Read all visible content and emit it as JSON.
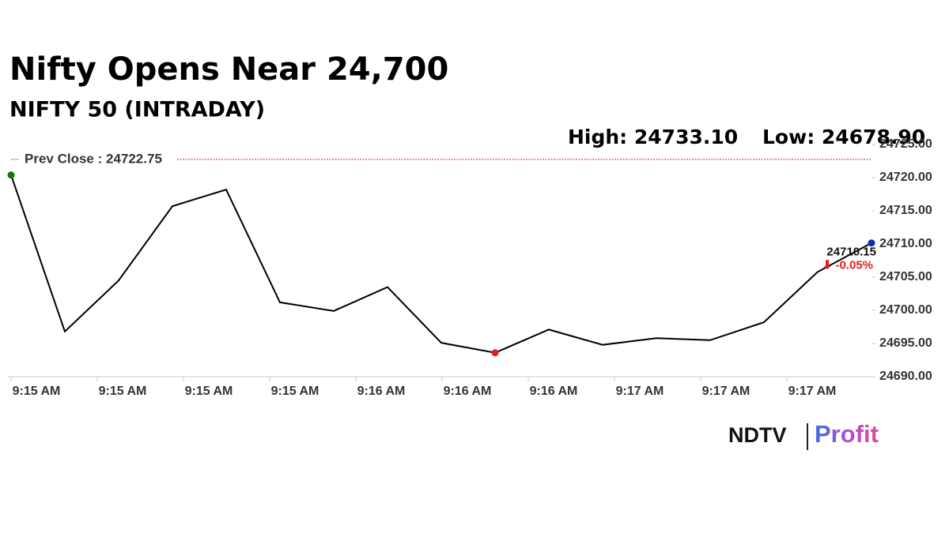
{
  "chart_data": {
    "type": "line",
    "title": "Nifty Opens Near 24,700",
    "subtitle": "NIFTY 50 (INTRADAY)",
    "high_label": "High: 24733.10",
    "low_label": "Low: 24678.90",
    "prev_close": {
      "value": 24722.75,
      "label": "Prev Close : 24722.75"
    },
    "change_label": "⬇ -0.05%",
    "x_tick_labels": [
      "9:15 AM",
      "9:15 AM",
      "9:15 AM",
      "9:15 AM",
      "9:16 AM",
      "9:16 AM",
      "9:16 AM",
      "9:17 AM",
      "9:17 AM",
      "9:17 AM"
    ],
    "series": [
      {
        "name": "NIFTY 50",
        "color": "#000000",
        "values": [
          24720.4,
          24696.8,
          24704.5,
          24715.7,
          24718.2,
          24701.2,
          24699.9,
          24703.5,
          24695.1,
          24693.6,
          24697.1,
          24694.8,
          24695.8,
          24695.5,
          24698.2,
          24705.8,
          24710.15
        ],
        "value_labels": [
          null,
          null,
          null,
          null,
          null,
          null,
          null,
          null,
          null,
          null,
          null,
          null,
          null,
          null,
          null,
          null,
          "24710.15"
        ]
      }
    ],
    "ylim": [
      24690,
      24725
    ],
    "yticks": [
      {
        "value": 24690,
        "label": "24690.00"
      },
      {
        "value": 24695,
        "label": "24695.00"
      },
      {
        "value": 24700,
        "label": "24700.00"
      },
      {
        "value": 24705,
        "label": "24705.00"
      },
      {
        "value": 24710,
        "label": "24710.00"
      },
      {
        "value": 24715,
        "label": "24715.00"
      },
      {
        "value": 24720,
        "label": "24720.00"
      },
      {
        "value": 24725,
        "label": "24725.00"
      }
    ],
    "logo": {
      "left": "NDTV",
      "right": "Profit"
    }
  }
}
